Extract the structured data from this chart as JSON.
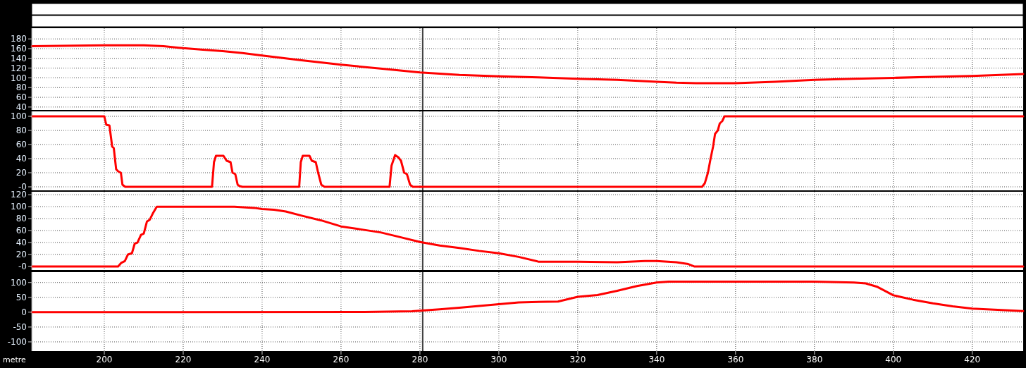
{
  "chart_data": [
    {
      "type": "line",
      "xlim": [
        181.6,
        432.9
      ],
      "xticks": [
        200,
        220,
        240,
        260,
        280,
        300,
        320,
        340,
        360,
        380,
        400,
        420
      ],
      "ylim": [
        34,
        202
      ],
      "yticks": [
        40,
        60,
        80,
        100,
        120,
        140,
        160,
        180
      ],
      "grid": true,
      "tick_labels": "y",
      "line_style": "solid",
      "marker": "none",
      "ref_lines": [
        {
          "axis": "x",
          "value": 280.7,
          "color": "#404040"
        }
      ],
      "series": [
        {
          "color": "#ff0000",
          "x": [
            181.6,
            200,
            210,
            215,
            220,
            225,
            230,
            235,
            240,
            250,
            260,
            270,
            280,
            290,
            300,
            310,
            320,
            330,
            340,
            345,
            350,
            360,
            370,
            380,
            390,
            400,
            410,
            420,
            432.9
          ],
          "values": [
            165,
            167,
            167,
            165,
            161,
            158,
            155,
            151,
            146,
            136,
            127,
            119,
            111,
            106,
            103,
            101,
            98,
            96,
            92,
            90,
            89,
            89,
            92,
            96,
            98,
            100,
            102,
            104,
            108
          ]
        }
      ]
    },
    {
      "type": "line",
      "xlim": [
        181.6,
        432.9
      ],
      "xticks": [
        200,
        220,
        240,
        260,
        280,
        300,
        320,
        340,
        360,
        380,
        400,
        420
      ],
      "ylim": [
        -5,
        107
      ],
      "yticks": [
        {
          "value": 0,
          "label": "-0"
        },
        20,
        40,
        60,
        80,
        100
      ],
      "grid": true,
      "tick_labels": "y",
      "line_style": "solid",
      "marker": "none",
      "ref_lines": [
        {
          "axis": "x",
          "value": 280.7,
          "color": "#404040"
        }
      ],
      "series": [
        {
          "color": "#ff0000",
          "x": [
            181.6,
            200,
            200.5,
            201.3,
            202,
            202.4,
            203,
            203.5,
            204.2,
            204.6,
            205.3,
            227.3,
            227.8,
            228.3,
            230.2,
            231,
            232,
            232.5,
            233.2,
            233.8,
            234.3,
            235,
            249.4,
            249.8,
            250.3,
            252,
            252.6,
            253.6,
            254.2,
            255,
            255.8,
            272.3,
            272.8,
            273.7,
            274.5,
            275.2,
            276,
            276.7,
            277.5,
            278.2,
            351.5,
            352.2,
            353,
            353.6,
            354.3,
            354.8,
            355.5,
            356,
            356.6,
            357.2,
            432.9
          ],
          "values": [
            100,
            100,
            88,
            87,
            57,
            55,
            25,
            22,
            20,
            3,
            0,
            0,
            35,
            44,
            44,
            37,
            35,
            20,
            18,
            3,
            1,
            0,
            0,
            35,
            44,
            44,
            37,
            35,
            20,
            3,
            0,
            0,
            30,
            45,
            42,
            37,
            20,
            18,
            3,
            0,
            0,
            5,
            20,
            38,
            57,
            75,
            80,
            90,
            93,
            100,
            100
          ]
        }
      ]
    },
    {
      "type": "line",
      "xlim": [
        181.6,
        432.9
      ],
      "xticks": [
        200,
        220,
        240,
        260,
        280,
        300,
        320,
        340,
        360,
        380,
        400,
        420
      ],
      "ylim": [
        -6,
        125
      ],
      "yticks": [
        {
          "value": 0,
          "label": "-0"
        },
        20,
        40,
        60,
        80,
        100,
        120
      ],
      "grid": true,
      "tick_labels": "y",
      "line_style": "solid",
      "marker": "none",
      "ref_lines": [
        {
          "axis": "x",
          "value": 280.7,
          "color": "#404040"
        }
      ],
      "series": [
        {
          "color": "#ff0000",
          "x": [
            181.6,
            203.5,
            204.3,
            205.2,
            206,
            207,
            207.7,
            208.4,
            209.3,
            210,
            210.8,
            211.5,
            212.4,
            213.3,
            233,
            238,
            240,
            243,
            246,
            250,
            255,
            260,
            265,
            270,
            275,
            280,
            285,
            290,
            295,
            300,
            305,
            310,
            320,
            330,
            337,
            340,
            345,
            348,
            349.5,
            432.9
          ],
          "values": [
            0,
            0,
            6,
            9,
            20,
            22,
            38,
            40,
            53,
            55,
            75,
            78,
            90,
            100,
            100,
            98,
            96,
            95,
            92,
            85,
            77,
            67,
            62,
            57,
            49,
            41,
            35,
            31,
            26,
            22,
            16,
            8,
            8,
            7,
            9,
            9,
            7,
            4,
            0,
            0
          ]
        }
      ]
    },
    {
      "type": "line",
      "xlim": [
        181.6,
        432.9
      ],
      "xticks": [
        200,
        220,
        240,
        260,
        280,
        300,
        320,
        340,
        360,
        380,
        400,
        420
      ],
      "ylim": [
        -131,
        135
      ],
      "yticks": [
        -100,
        -50,
        0,
        50,
        100
      ],
      "grid": true,
      "line_style": "solid",
      "marker": "none",
      "xlabel": "metre",
      "ref_lines": [
        {
          "axis": "x",
          "value": 280.7,
          "color": "#404040"
        }
      ],
      "series": [
        {
          "color": "#ff0000",
          "x": [
            181.6,
            266,
            278,
            285,
            290,
            300,
            305,
            315,
            320,
            325,
            330,
            335,
            340,
            343,
            380,
            390,
            393,
            396,
            400,
            405,
            410,
            415,
            420,
            432.9
          ],
          "values": [
            0,
            1,
            3,
            10,
            15,
            27,
            33,
            36,
            52,
            58,
            72,
            88,
            100,
            103,
            103,
            100,
            97,
            85,
            57,
            42,
            30,
            20,
            12,
            4
          ]
        }
      ]
    }
  ]
}
